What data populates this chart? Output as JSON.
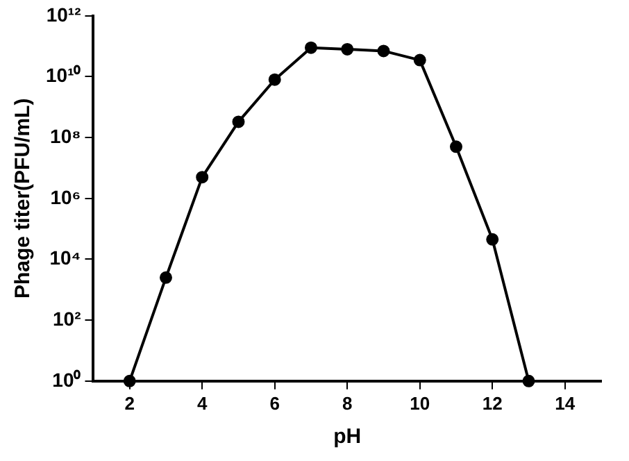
{
  "chart_data": {
    "type": "line",
    "xlabel": "pH",
    "ylabel": "Phage titer(PFU/mL)",
    "log": "y",
    "grid": false,
    "marker": "circle",
    "line_style": "solid",
    "x": [
      2,
      3,
      4,
      5,
      6,
      7,
      8,
      9,
      10,
      11,
      12,
      13
    ],
    "series": [
      {
        "color": "#000000",
        "values": [
          1,
          2500,
          5000000,
          330000000,
          8000000000,
          90000000000,
          80000000000,
          70000000000,
          35000000000,
          50000000,
          45000,
          1
        ]
      }
    ],
    "xlim": [
      1,
      15
    ],
    "xticks": [
      2,
      4,
      6,
      8,
      10,
      12,
      14
    ],
    "ylim": [
      1,
      1000000000000
    ],
    "yticks": [
      {
        "value": 1,
        "label": "10⁰"
      },
      {
        "value": 100,
        "label": "10²"
      },
      {
        "value": 10000,
        "label": "10⁴"
      },
      {
        "value": 1000000,
        "label": "10⁶"
      },
      {
        "value": 100000000,
        "label": "10⁸"
      },
      {
        "value": 10000000000,
        "label": "10¹⁰"
      },
      {
        "value": 1000000000000,
        "label": "10¹²"
      }
    ]
  }
}
